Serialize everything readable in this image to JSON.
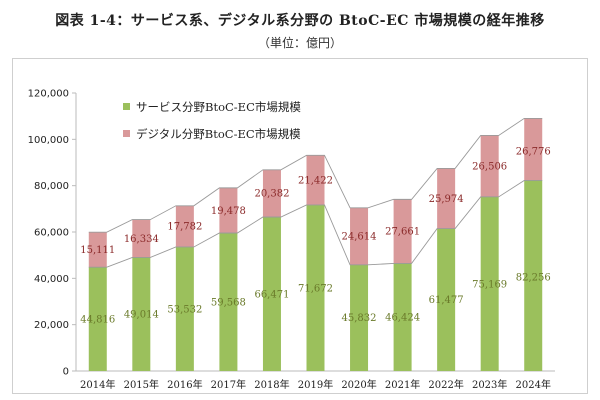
{
  "title": "図表 1-4：サービス系、デジタル系分野の BtoC-EC 市場規模の経年推移",
  "unit": "（単位：億円）",
  "chart_data": {
    "type": "bar",
    "stacked": true,
    "categories": [
      "2014年",
      "2015年",
      "2016年",
      "2017年",
      "2018年",
      "2019年",
      "2020年",
      "2021年",
      "2022年",
      "2023年",
      "2024年"
    ],
    "series": [
      {
        "name": "サービス分野BtoC-EC市場規模",
        "color": "#9bc05c",
        "values": [
          44816,
          49014,
          53532,
          59568,
          66471,
          71672,
          45832,
          46424,
          61477,
          75169,
          82256
        ]
      },
      {
        "name": "デジタル分野BtoC-EC市場規模",
        "color": "#d9999a",
        "values": [
          15111,
          16334,
          17782,
          19478,
          20382,
          21422,
          24614,
          27661,
          25974,
          26506,
          26776
        ]
      }
    ],
    "value_labels": {
      "service": [
        "44,816",
        "49,014",
        "53,532",
        "59,568",
        "66,471",
        "71,672",
        "45,832",
        "46,424",
        "61,477",
        "75,169",
        "82,256"
      ],
      "digital": [
        "15,111",
        "16,334",
        "17,782",
        "19,478",
        "20,382",
        "21,422",
        "24,614",
        "27,661",
        "25,974",
        "26,506",
        "26,776"
      ]
    },
    "service_label_color": "#6a7a2a",
    "digital_label_color": "#8b2a2a",
    "ylim": [
      0,
      120000
    ],
    "yticks": [
      0,
      20000,
      40000,
      60000,
      80000,
      100000,
      120000
    ],
    "ytick_labels": [
      "0",
      "20,000",
      "40,000",
      "60,000",
      "80,000",
      "100,000",
      "120,000"
    ],
    "legend_position": "top-left",
    "grid": false,
    "connector_lines": true
  }
}
